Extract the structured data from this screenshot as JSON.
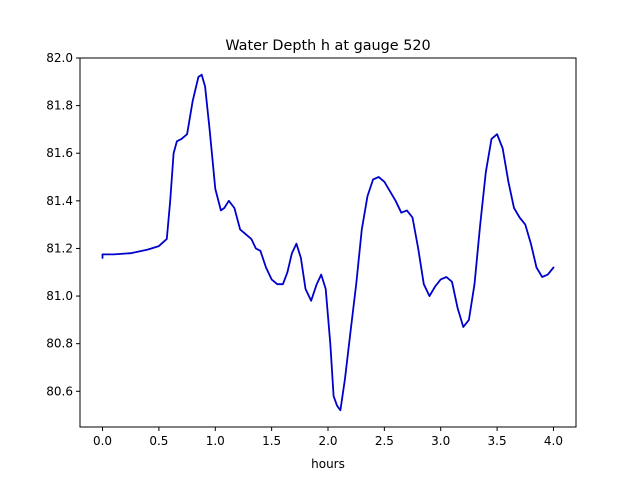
{
  "chart_data": {
    "type": "line",
    "title": "Water Depth h at gauge 520",
    "xlabel": "hours",
    "ylabel": "",
    "xlim": [
      -0.2,
      4.2
    ],
    "ylim": [
      80.45,
      82.0
    ],
    "x_ticks": [
      0.0,
      0.5,
      1.0,
      1.5,
      2.0,
      2.5,
      3.0,
      3.5,
      4.0
    ],
    "x_tick_labels": [
      "0.0",
      "0.5",
      "1.0",
      "1.5",
      "2.0",
      "2.5",
      "3.0",
      "3.5",
      "4.0"
    ],
    "y_ticks": [
      80.6,
      80.8,
      81.0,
      81.2,
      81.4,
      81.6,
      81.8,
      82.0
    ],
    "y_tick_labels": [
      "80.6",
      "80.8",
      "81.0",
      "81.2",
      "81.4",
      "81.6",
      "81.8",
      "82.0"
    ],
    "grid": false,
    "line_color": "#0000cc",
    "series": [
      {
        "x": [
          0.0,
          0.0,
          0.1,
          0.25,
          0.4,
          0.5,
          0.57,
          0.6,
          0.63,
          0.66,
          0.7,
          0.75,
          0.8,
          0.85,
          0.88,
          0.91,
          0.95,
          1.0,
          1.05,
          1.08,
          1.12,
          1.17,
          1.22,
          1.27,
          1.32,
          1.36,
          1.4,
          1.45,
          1.5,
          1.55,
          1.6,
          1.64,
          1.68,
          1.72,
          1.76,
          1.8,
          1.85,
          1.9,
          1.94,
          1.98,
          2.02,
          2.05,
          2.08,
          2.11,
          2.15,
          2.2,
          2.25,
          2.3,
          2.35,
          2.4,
          2.45,
          2.5,
          2.55,
          2.6,
          2.65,
          2.7,
          2.75,
          2.8,
          2.85,
          2.9,
          2.95,
          3.0,
          3.05,
          3.1,
          3.15,
          3.2,
          3.25,
          3.3,
          3.35,
          3.4,
          3.45,
          3.5,
          3.55,
          3.6,
          3.65,
          3.7,
          3.75,
          3.8,
          3.85,
          3.9,
          3.95,
          4.0
        ],
        "y": [
          81.16,
          81.175,
          81.175,
          81.18,
          81.195,
          81.21,
          81.24,
          81.4,
          81.6,
          81.65,
          81.66,
          81.68,
          81.82,
          81.92,
          81.93,
          81.88,
          81.7,
          81.45,
          81.36,
          81.37,
          81.4,
          81.37,
          81.28,
          81.26,
          81.24,
          81.2,
          81.19,
          81.12,
          81.07,
          81.05,
          81.05,
          81.1,
          81.18,
          81.22,
          81.16,
          81.03,
          80.98,
          81.05,
          81.09,
          81.03,
          80.8,
          80.58,
          80.54,
          80.52,
          80.65,
          80.85,
          81.05,
          81.28,
          81.42,
          81.49,
          81.5,
          81.48,
          81.44,
          81.4,
          81.35,
          81.36,
          81.33,
          81.2,
          81.05,
          81.0,
          81.04,
          81.07,
          81.08,
          81.06,
          80.95,
          80.87,
          80.9,
          81.05,
          81.3,
          81.52,
          81.66,
          81.68,
          81.62,
          81.48,
          81.37,
          81.33,
          81.3,
          81.22,
          81.12,
          81.08,
          81.09,
          81.12
        ]
      }
    ]
  }
}
